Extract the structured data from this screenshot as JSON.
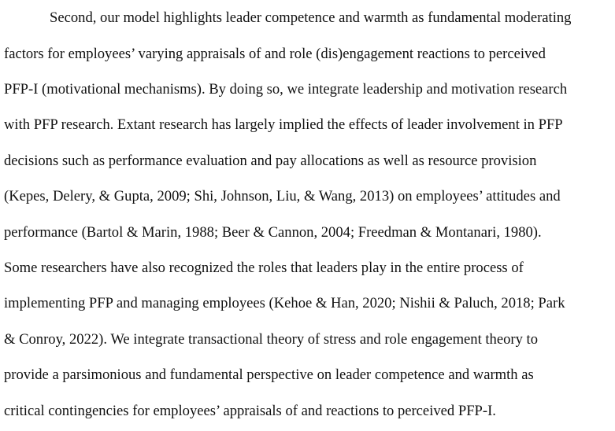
{
  "paragraph": {
    "lines": [
      "Second, our model highlights leader competence and warmth as fundamental moderating",
      "factors for employees’ varying appraisals of and role (dis)engagement reactions to perceived",
      "PFP-I (motivational mechanisms). By doing so, we integrate leadership and motivation research",
      "with PFP research. Extant research has largely implied the effects of leader involvement in PFP",
      "decisions such as performance evaluation and pay allocations as well as resource provision",
      "(Kepes, Delery, & Gupta, 2009; Shi, Johnson, Liu, & Wang, 2013) on employees’ attitudes and",
      "performance (Bartol & Marin, 1988; Beer & Cannon, 2004; Freedman & Montanari, 1980).",
      "Some researchers have also recognized the roles that leaders play in the entire process of",
      "implementing PFP and managing employees (Kehoe & Han, 2020; Nishii & Paluch, 2018; Park",
      "& Conroy, 2022). We integrate transactional theory of stress and role engagement theory to",
      "provide a parsimonious and fundamental perspective on leader competence and warmth as",
      "critical contingencies for employees’ appraisals of and reactions to perceived PFP-I."
    ]
  }
}
